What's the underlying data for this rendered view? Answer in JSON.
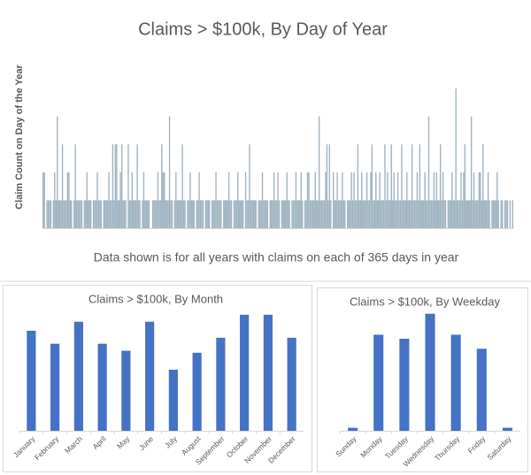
{
  "chart_data": [
    {
      "type": "bar",
      "title": "Claims > $100k, By Day of Year",
      "y_label": "Claim Count on Day of the Year",
      "caption": "Data shown is for all years with claims on each of 365 days in year",
      "color": "#9fb3c1",
      "ylim": [
        0,
        5
      ],
      "values": [
        2,
        2,
        0,
        1,
        1,
        1,
        1,
        0,
        1,
        2,
        1,
        4,
        1,
        1,
        1,
        3,
        1,
        1,
        1,
        2,
        2,
        1,
        1,
        0,
        1,
        3,
        1,
        1,
        1,
        1,
        1,
        0,
        1,
        1,
        2,
        1,
        1,
        1,
        0,
        1,
        1,
        1,
        2,
        1,
        1,
        1,
        0,
        1,
        1,
        1,
        1,
        2,
        1,
        1,
        3,
        1,
        3,
        3,
        1,
        1,
        2,
        3,
        1,
        1,
        1,
        0,
        3,
        1,
        1,
        2,
        1,
        1,
        1,
        3,
        1,
        1,
        0,
        1,
        2,
        1,
        1,
        1,
        1,
        0,
        0,
        1,
        1,
        1,
        1,
        2,
        1,
        1,
        3,
        2,
        2,
        1,
        1,
        1,
        4,
        1,
        1,
        0,
        1,
        2,
        1,
        1,
        1,
        1,
        3,
        1,
        1,
        0,
        1,
        1,
        2,
        1,
        1,
        1,
        0,
        1,
        1,
        2,
        1,
        1,
        1,
        0,
        1,
        1,
        1,
        1,
        0,
        1,
        1,
        1,
        2,
        1,
        1,
        1,
        1,
        0,
        1,
        1,
        1,
        1,
        2,
        1,
        1,
        0,
        1,
        1,
        1,
        2,
        1,
        1,
        1,
        1,
        0,
        2,
        1,
        1,
        3,
        1,
        1,
        1,
        1,
        1,
        0,
        1,
        1,
        1,
        2,
        1,
        1,
        1,
        1,
        0,
        1,
        1,
        1,
        2,
        1,
        1,
        2,
        1,
        0,
        1,
        1,
        1,
        1,
        2,
        1,
        1,
        0,
        1,
        1,
        1,
        2,
        1,
        1,
        1,
        2,
        1,
        0,
        1,
        1,
        2,
        2,
        1,
        1,
        1,
        1,
        2,
        1,
        1,
        4,
        1,
        1,
        1,
        1,
        2,
        3,
        1,
        3,
        1,
        0,
        2,
        1,
        1,
        2,
        1,
        1,
        1,
        2,
        1,
        1,
        0,
        1,
        1,
        1,
        2,
        1,
        2,
        1,
        1,
        3,
        1,
        1,
        2,
        1,
        1,
        1,
        2,
        1,
        1,
        2,
        3,
        1,
        1,
        2,
        1,
        1,
        2,
        1,
        1,
        1,
        3,
        1,
        2,
        1,
        1,
        3,
        1,
        2,
        1,
        1,
        2,
        1,
        1,
        3,
        1,
        1,
        1,
        2,
        1,
        1,
        1,
        3,
        1,
        1,
        1,
        2,
        1,
        3,
        1,
        1,
        1,
        2,
        1,
        1,
        4,
        1,
        1,
        1,
        2,
        1,
        2,
        1,
        1,
        3,
        1,
        2,
        1,
        1,
        0,
        1,
        1,
        1,
        2,
        1,
        1,
        5,
        1,
        1,
        1,
        2,
        1,
        2,
        3,
        1,
        1,
        1,
        1,
        4,
        1,
        2,
        1,
        1,
        1,
        2,
        2,
        1,
        3,
        1,
        1,
        1,
        2,
        1,
        0,
        1,
        1,
        1,
        1,
        2,
        1,
        0,
        1,
        1,
        0,
        1,
        1,
        1,
        0,
        1,
        0,
        1
      ]
    },
    {
      "type": "bar",
      "title": "Claims > $100k, By Month",
      "color": "#4472c4",
      "ylim": [
        0,
        130
      ],
      "categories": [
        "January",
        "February",
        "March",
        "April",
        "May",
        "June",
        "July",
        "August",
        "September",
        "October",
        "November",
        "December"
      ],
      "values": [
        100,
        87,
        109,
        87,
        80,
        109,
        61,
        78,
        93,
        116,
        116,
        93
      ]
    },
    {
      "type": "bar",
      "title": "Claims > $100k, By Weekday",
      "color": "#4472c4",
      "ylim": [
        0,
        130
      ],
      "categories": [
        "Sunday",
        "Monday",
        "Tuesday",
        "Wednesday",
        "Thursday",
        "Friday",
        "Saturday"
      ],
      "values": [
        3,
        96,
        92,
        117,
        96,
        82,
        3
      ]
    }
  ]
}
